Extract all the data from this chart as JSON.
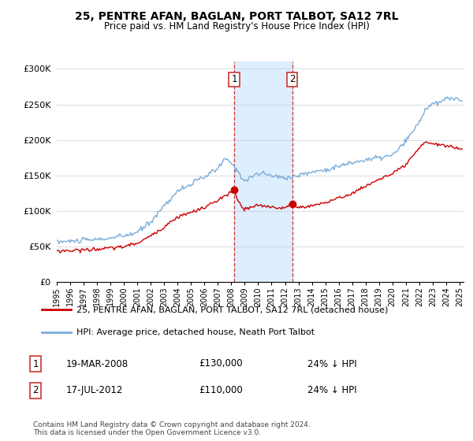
{
  "title": "25, PENTRE AFAN, BAGLAN, PORT TALBOT, SA12 7RL",
  "subtitle": "Price paid vs. HM Land Registry's House Price Index (HPI)",
  "legend_line1": "25, PENTRE AFAN, BAGLAN, PORT TALBOT, SA12 7RL (detached house)",
  "legend_line2": "HPI: Average price, detached house, Neath Port Talbot",
  "marker1_date": "19-MAR-2008",
  "marker1_price": "£130,000",
  "marker1_label": "24% ↓ HPI",
  "marker1_year": 2008.208,
  "marker1_val": 130000,
  "marker2_date": "17-JUL-2012",
  "marker2_price": "£110,000",
  "marker2_label": "24% ↓ HPI",
  "marker2_year": 2012.542,
  "marker2_val": 110000,
  "footnote": "Contains HM Land Registry data © Crown copyright and database right 2024.\nThis data is licensed under the Open Government Licence v3.0.",
  "hpi_color": "#7aadda",
  "price_color": "#cc0000",
  "shade_color": "#ddeeff",
  "marker_color": "#cc0000",
  "ylim": [
    0,
    310000
  ],
  "yticks": [
    0,
    50000,
    100000,
    150000,
    200000,
    250000,
    300000
  ],
  "hpi_points": [
    [
      1995,
      57000
    ],
    [
      1996,
      57500
    ],
    [
      1997,
      59000
    ],
    [
      1998,
      60000
    ],
    [
      1999,
      62000
    ],
    [
      2000,
      65000
    ],
    [
      2001,
      70000
    ],
    [
      2002,
      85000
    ],
    [
      2003,
      108000
    ],
    [
      2004,
      128000
    ],
    [
      2005,
      138000
    ],
    [
      2006,
      148000
    ],
    [
      2007,
      160000
    ],
    [
      2007.5,
      173000
    ],
    [
      2008,
      168000
    ],
    [
      2008.5,
      155000
    ],
    [
      2009,
      143000
    ],
    [
      2009.5,
      148000
    ],
    [
      2010,
      153000
    ],
    [
      2010.5,
      152000
    ],
    [
      2011,
      150000
    ],
    [
      2011.5,
      148000
    ],
    [
      2012,
      147000
    ],
    [
      2012.5,
      148000
    ],
    [
      2013,
      150000
    ],
    [
      2014,
      155000
    ],
    [
      2015,
      158000
    ],
    [
      2016,
      163000
    ],
    [
      2017,
      168000
    ],
    [
      2018,
      172000
    ],
    [
      2019,
      175000
    ],
    [
      2020,
      178000
    ],
    [
      2021,
      198000
    ],
    [
      2022,
      225000
    ],
    [
      2022.5,
      245000
    ],
    [
      2023,
      250000
    ],
    [
      2023.5,
      252000
    ],
    [
      2024,
      258000
    ],
    [
      2024.5,
      260000
    ],
    [
      2025,
      255000
    ]
  ],
  "prop_points": [
    [
      1995,
      44000
    ],
    [
      1996,
      44500
    ],
    [
      1997,
      45500
    ],
    [
      1998,
      46500
    ],
    [
      1999,
      48000
    ],
    [
      2000,
      50000
    ],
    [
      2001,
      55000
    ],
    [
      2002,
      65000
    ],
    [
      2003,
      78000
    ],
    [
      2004,
      92000
    ],
    [
      2005,
      98000
    ],
    [
      2006,
      105000
    ],
    [
      2007,
      115000
    ],
    [
      2008.1,
      128000
    ],
    [
      2008.208,
      130000
    ],
    [
      2008.4,
      118000
    ],
    [
      2008.8,
      105000
    ],
    [
      2009,
      103000
    ],
    [
      2009.5,
      105000
    ],
    [
      2010,
      108000
    ],
    [
      2010.5,
      107000
    ],
    [
      2011,
      106000
    ],
    [
      2011.5,
      105000
    ],
    [
      2012,
      104000
    ],
    [
      2012.542,
      110000
    ],
    [
      2013,
      105000
    ],
    [
      2013.5,
      106000
    ],
    [
      2014,
      108000
    ],
    [
      2015,
      112000
    ],
    [
      2016,
      118000
    ],
    [
      2017,
      125000
    ],
    [
      2018,
      135000
    ],
    [
      2019,
      145000
    ],
    [
      2020,
      152000
    ],
    [
      2021,
      165000
    ],
    [
      2022,
      188000
    ],
    [
      2022.5,
      198000
    ],
    [
      2023,
      195000
    ],
    [
      2023.5,
      193000
    ],
    [
      2024,
      192000
    ],
    [
      2024.5,
      190000
    ],
    [
      2025,
      188000
    ]
  ]
}
